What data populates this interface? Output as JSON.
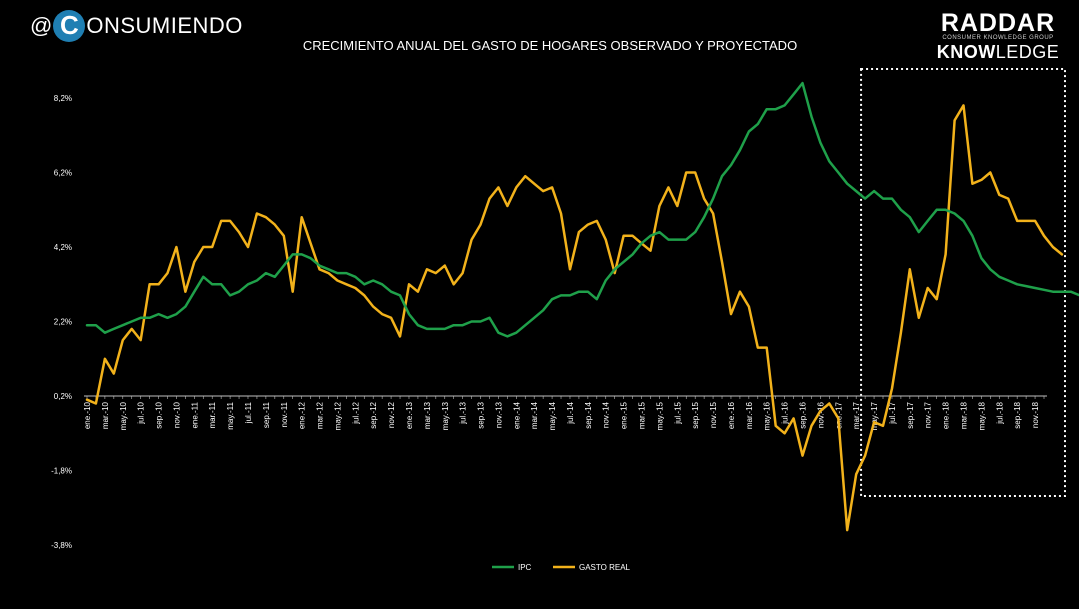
{
  "brand": {
    "at": "@",
    "logo_letter": "C",
    "word": "ONSUMIENDO"
  },
  "partner": {
    "line1": "RADDAR",
    "line2": "CONSUMER KNOWLEDGE GROUP",
    "line3a": "KNOW",
    "line3b": "LEDGE"
  },
  "chart_data": {
    "type": "line",
    "title": "CRECIMIENTO ANUAL DEL GASTO DE HOGARES OBSERVADO Y PROYECTADO",
    "xlabel": "",
    "ylabel": "",
    "ylim": [
      -3.8,
      8.2
    ],
    "yticks": [
      -3.8,
      -1.8,
      0.2,
      2.2,
      4.2,
      6.2,
      8.2
    ],
    "ytick_labels": [
      "-3,8%",
      "-1,8%",
      "0,2%",
      "2,2%",
      "4,2%",
      "6,2%",
      "8,2%"
    ],
    "xtick_labels": [
      "ene.-10",
      "mar.-10",
      "may.-10",
      "jul.-10",
      "sep.-10",
      "nov.-10",
      "ene.-11",
      "mar.-11",
      "may.-11",
      "jul.-11",
      "sep.-11",
      "nov.-11",
      "ene.-12",
      "mar.-12",
      "may.-12",
      "jul.-12",
      "sep.-12",
      "nov.-12",
      "ene.-13",
      "mar.-13",
      "may.-13",
      "jul.-13",
      "sep.-13",
      "nov.-13",
      "ene.-14",
      "mar.-14",
      "may.-14",
      "jul.-14",
      "sep.-14",
      "nov.-14",
      "ene.-15",
      "mar.-15",
      "may.-15",
      "jul.-15",
      "sep.-15",
      "nov.-15",
      "ene.-16",
      "mar.-16",
      "may.-16",
      "jul.-16",
      "sep.-16",
      "nov.-16",
      "ene.-17",
      "mar.-17",
      "may.-17",
      "jul.-17",
      "sep.-17",
      "nov.-17",
      "ene.-18",
      "mar.-18",
      "may.-18",
      "jul.-18",
      "sep.-18",
      "nov.-18"
    ],
    "months": 108,
    "highlight_from": "may.-17",
    "legend_position": "bottom-center",
    "grid": false,
    "series": [
      {
        "name": "IPC",
        "color": "#1fa04a",
        "values": [
          2.1,
          2.1,
          1.9,
          2.0,
          2.1,
          2.2,
          2.3,
          2.3,
          2.4,
          2.3,
          2.4,
          2.6,
          3.0,
          3.4,
          3.2,
          3.2,
          2.9,
          3.0,
          3.2,
          3.3,
          3.5,
          3.4,
          3.7,
          4.0,
          4.0,
          3.9,
          3.7,
          3.6,
          3.5,
          3.5,
          3.4,
          3.2,
          3.3,
          3.2,
          3.0,
          2.9,
          2.4,
          2.1,
          2.0,
          2.0,
          2.0,
          2.1,
          2.1,
          2.2,
          2.2,
          2.3,
          1.9,
          1.8,
          1.9,
          2.1,
          2.3,
          2.5,
          2.8,
          2.9,
          2.9,
          3.0,
          3.0,
          2.8,
          3.3,
          3.6,
          3.8,
          4.0,
          4.3,
          4.5,
          4.6,
          4.4,
          4.4,
          4.4,
          4.6,
          5.0,
          5.5,
          6.1,
          6.4,
          6.8,
          7.3,
          7.5,
          7.9,
          7.9,
          8.0,
          8.3,
          8.6,
          7.7,
          7.0,
          6.5,
          6.2,
          5.9,
          5.7,
          5.5,
          5.7,
          5.5,
          5.5,
          5.2,
          5.0,
          4.6,
          4.9,
          5.2,
          5.2,
          5.1,
          4.9,
          4.5,
          3.9,
          3.6,
          3.4,
          3.3,
          3.2,
          3.15,
          3.1,
          3.05,
          3.0,
          3.0,
          3.0,
          2.9
        ]
      },
      {
        "name": "GASTO REAL",
        "color": "#f2b21b",
        "values": [
          0.1,
          0.0,
          1.2,
          0.8,
          1.7,
          2.0,
          1.7,
          3.2,
          3.2,
          3.5,
          4.2,
          3.0,
          3.8,
          4.2,
          4.2,
          4.9,
          4.9,
          4.6,
          4.2,
          5.1,
          5.0,
          4.8,
          4.5,
          3.0,
          5.0,
          4.3,
          3.6,
          3.5,
          3.3,
          3.2,
          3.1,
          2.9,
          2.6,
          2.4,
          2.3,
          1.8,
          3.2,
          3.0,
          3.6,
          3.5,
          3.7,
          3.2,
          3.5,
          4.4,
          4.8,
          5.5,
          5.8,
          5.3,
          5.8,
          6.1,
          5.9,
          5.7,
          5.8,
          5.1,
          3.6,
          4.6,
          4.8,
          4.9,
          4.4,
          3.5,
          4.5,
          4.5,
          4.3,
          4.1,
          5.3,
          5.8,
          5.3,
          6.2,
          6.2,
          5.5,
          5.1,
          3.8,
          2.4,
          3.0,
          2.6,
          1.5,
          1.5,
          -0.6,
          -0.8,
          -0.4,
          -1.4,
          -0.6,
          -0.2,
          0.0,
          -0.4,
          -3.4,
          -1.9,
          -1.4,
          -0.5,
          -0.6,
          0.4,
          1.9,
          3.6,
          2.3,
          3.1,
          2.8,
          4.0,
          7.6,
          8.0,
          5.9,
          6.0,
          6.2,
          5.6,
          5.5,
          4.9,
          4.9,
          4.9,
          4.5,
          4.2,
          4.0
        ]
      }
    ]
  }
}
